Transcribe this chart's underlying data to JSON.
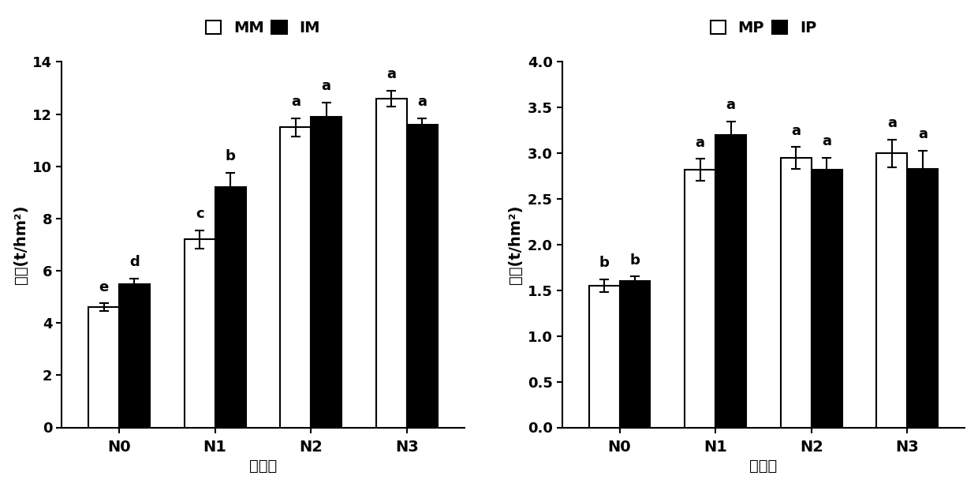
{
  "left": {
    "categories": [
      "N0",
      "N1",
      "N2",
      "N3"
    ],
    "MM_values": [
      4.6,
      7.2,
      11.5,
      12.6
    ],
    "IM_values": [
      5.5,
      9.2,
      11.9,
      11.6
    ],
    "MM_errors": [
      0.15,
      0.35,
      0.35,
      0.3
    ],
    "IM_errors": [
      0.2,
      0.55,
      0.55,
      0.25
    ],
    "MM_labels": [
      "e",
      "c",
      "a",
      "a"
    ],
    "IM_labels": [
      "d",
      "b",
      "a",
      "a"
    ],
    "ylim": [
      0,
      14
    ],
    "yticks": [
      0,
      2,
      4,
      6,
      8,
      10,
      12,
      14
    ],
    "ylabel": "产量(t/hm²)",
    "xlabel": "氮水平",
    "legend_labels": [
      "MM",
      "IM"
    ]
  },
  "right": {
    "categories": [
      "N0",
      "N1",
      "N2",
      "N3"
    ],
    "MP_values": [
      1.55,
      2.82,
      2.95,
      3.0
    ],
    "IP_values": [
      1.6,
      3.2,
      2.82,
      2.83
    ],
    "MP_errors": [
      0.07,
      0.12,
      0.12,
      0.15
    ],
    "IP_errors": [
      0.05,
      0.15,
      0.13,
      0.2
    ],
    "MP_labels": [
      "b",
      "a",
      "a",
      "a"
    ],
    "IP_labels": [
      "b",
      "a",
      "a",
      "a"
    ],
    "ylim": [
      0.0,
      4.0
    ],
    "yticks": [
      0.0,
      0.5,
      1.0,
      1.5,
      2.0,
      2.5,
      3.0,
      3.5,
      4.0
    ],
    "ylabel": "产量(t/hm²)",
    "xlabel": "氮水平",
    "legend_labels": [
      "MP",
      "IP"
    ]
  },
  "bar_width": 0.32,
  "white_color": "#ffffff",
  "black_color": "#000000",
  "edge_color": "#000000"
}
